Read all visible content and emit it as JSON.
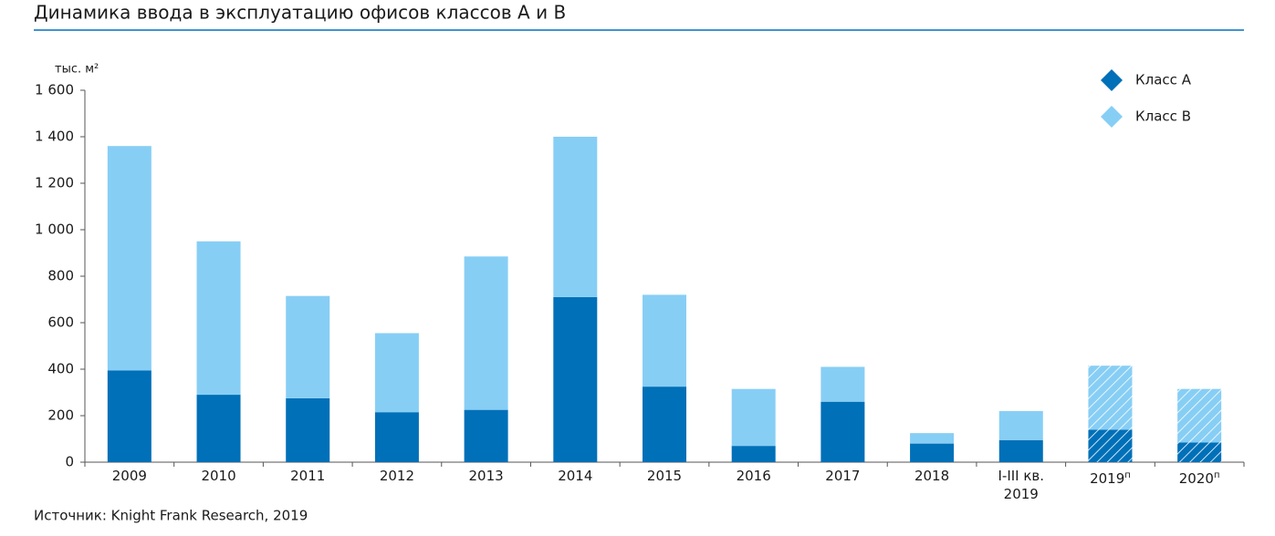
{
  "chart_data": {
    "type": "stacked_bar",
    "title": "Динамика ввода в эксплуатацию офисов классов А и В",
    "y_label": "тыс. м²",
    "source": "Источник: Knight Frank Research, 2019",
    "categories": [
      "2009",
      "2010",
      "2011",
      "2012",
      "2013",
      "2014",
      "2015",
      "2016",
      "2017",
      "2018",
      "I-III кв. 2019",
      "2019",
      "2020"
    ],
    "category_notes": [
      null,
      null,
      null,
      null,
      null,
      null,
      null,
      null,
      null,
      null,
      null,
      "п",
      "п"
    ],
    "hatched": [
      false,
      false,
      false,
      false,
      false,
      false,
      false,
      false,
      false,
      false,
      false,
      true,
      true
    ],
    "series": [
      {
        "name": "Класс А",
        "color": "#0070b8",
        "values": [
          395,
          290,
          275,
          215,
          225,
          710,
          325,
          70,
          260,
          80,
          95,
          140,
          85
        ]
      },
      {
        "name": "Класс В",
        "color": "#87cef5",
        "values": [
          965,
          660,
          440,
          340,
          660,
          690,
          395,
          245,
          150,
          45,
          125,
          275,
          230
        ]
      }
    ],
    "ylim": [
      0,
      1600
    ],
    "yticks": [
      0,
      200,
      400,
      600,
      800,
      {
        "value": 1000,
        "label": "1 000"
      },
      {
        "value": 1200,
        "label": "1 200"
      },
      {
        "value": 1400,
        "label": "1 400"
      },
      {
        "value": 1600,
        "label": "1 600"
      }
    ],
    "legend": "top-right"
  }
}
